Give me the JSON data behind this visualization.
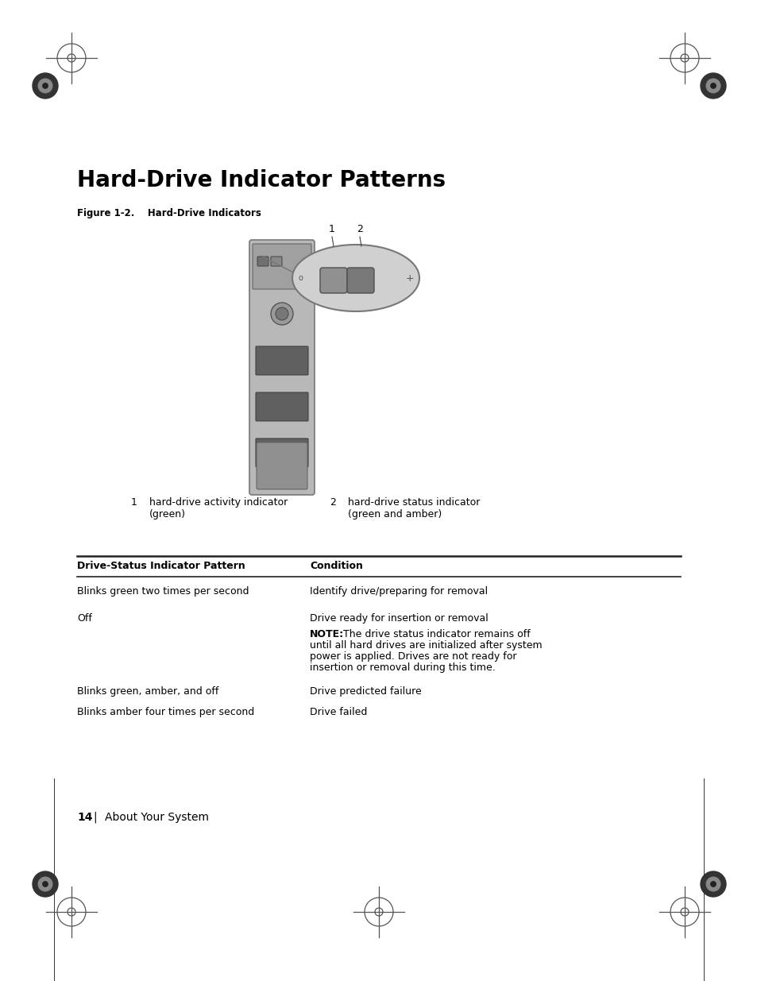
{
  "title": "Hard-Drive Indicator Patterns",
  "figure_label": "Figure 1-2.    Hard-Drive Indicators",
  "page_num": "14",
  "page_label": "About Your System",
  "indicator1_label1": "hard-drive activity indicator",
  "indicator1_label2": "(green)",
  "indicator2_label1": "hard-drive status indicator",
  "indicator2_label2": "(green and amber)",
  "table_header_col1": "Drive-Status Indicator Pattern",
  "table_header_col2": "Condition",
  "bg_color": "#ffffff",
  "text_color": "#000000",
  "gray_dark": "#444444",
  "gray_med": "#888888",
  "gray_light": "#cccccc",
  "drive_body_color": "#b8b8b8",
  "drive_top_color": "#a0a0a0",
  "drive_slot_color": "#606060",
  "drive_bottom_color": "#909090",
  "bubble_fill": "#d0d0d0",
  "bubble_edge": "#777777"
}
